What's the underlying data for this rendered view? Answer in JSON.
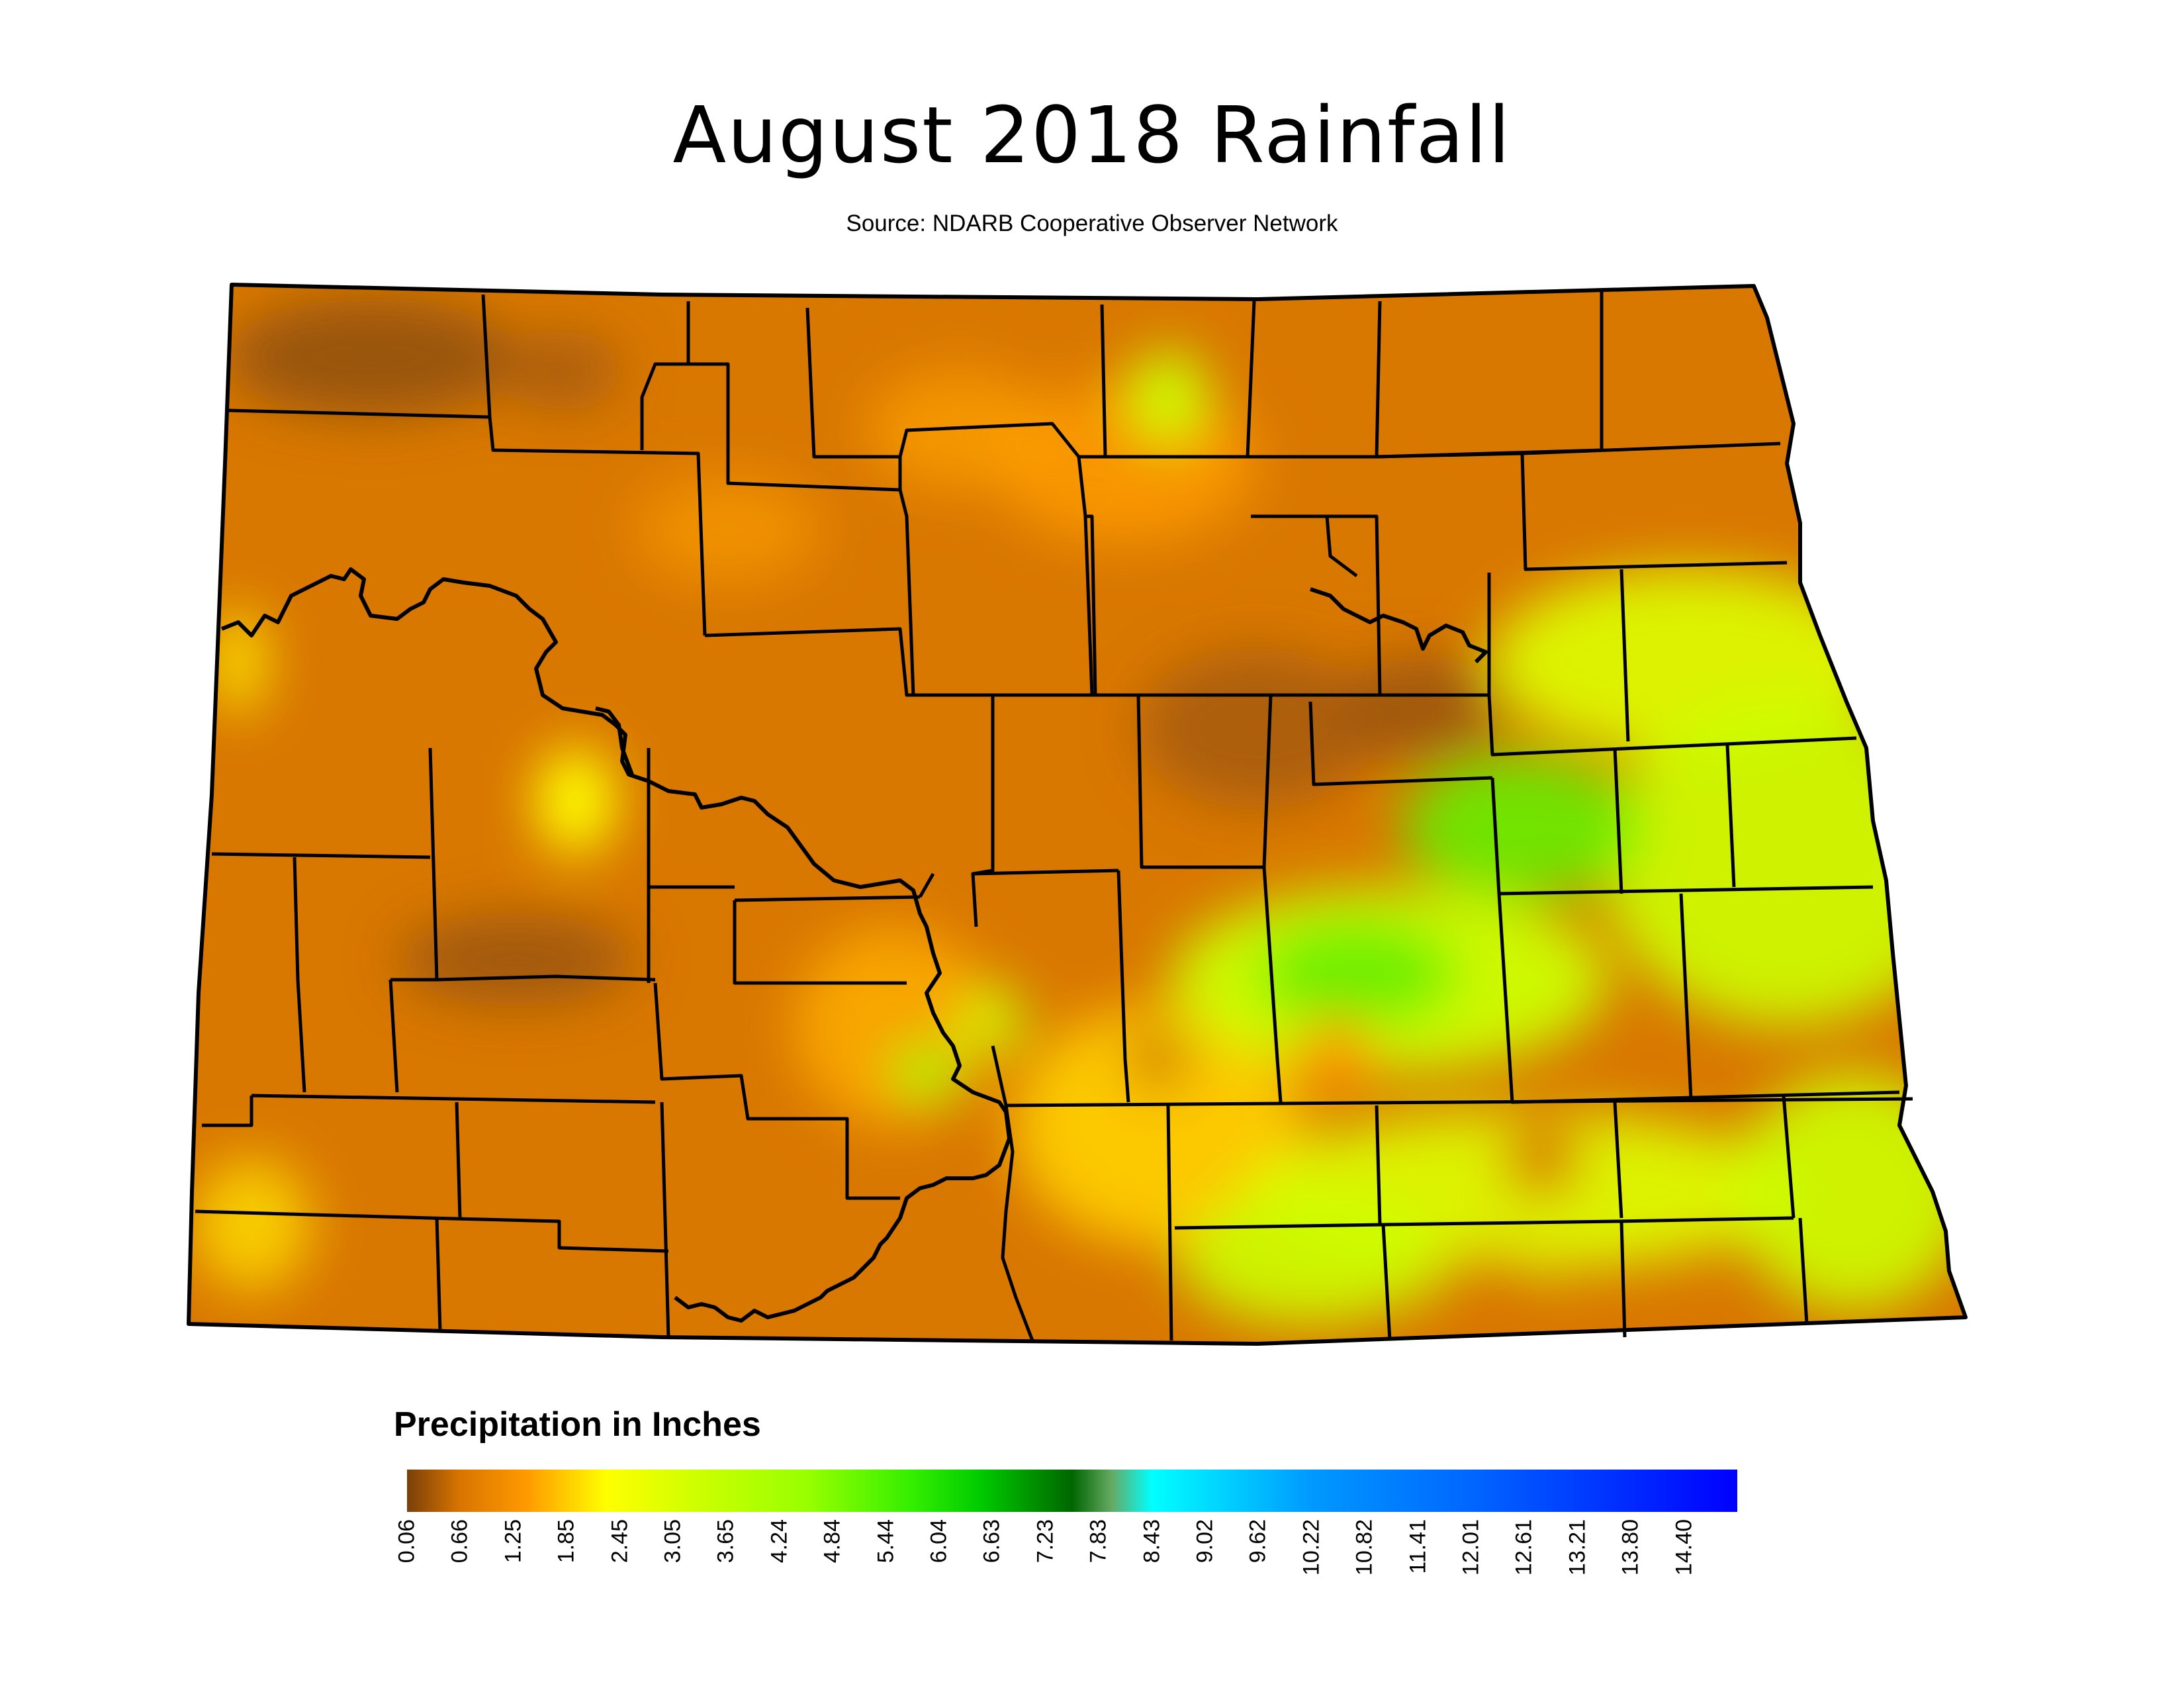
{
  "title": "August 2018 Rainfall",
  "subtitle": "Source: NDARB Cooperative Observer Network",
  "legend": {
    "title": "Precipitation in Inches",
    "ticks": [
      "0.06",
      "0.66",
      "1.25",
      "1.85",
      "2.45",
      "3.05",
      "3.65",
      "4.24",
      "4.84",
      "5.44",
      "6.04",
      "6.63",
      "7.23",
      "7.83",
      "8.43",
      "9.02",
      "9.62",
      "10.22",
      "10.82",
      "11.41",
      "12.01",
      "12.61",
      "13.21",
      "13.80",
      "14.40"
    ],
    "colors": [
      "#7a3f0a",
      "#d97500",
      "#ff9a00",
      "#ffff00",
      "#99ff00",
      "#00cc00",
      "#006600",
      "#00ffff",
      "#0066ff",
      "#0000ff"
    ]
  },
  "map": {
    "region": "North Dakota",
    "base_color": "#d97800"
  }
}
